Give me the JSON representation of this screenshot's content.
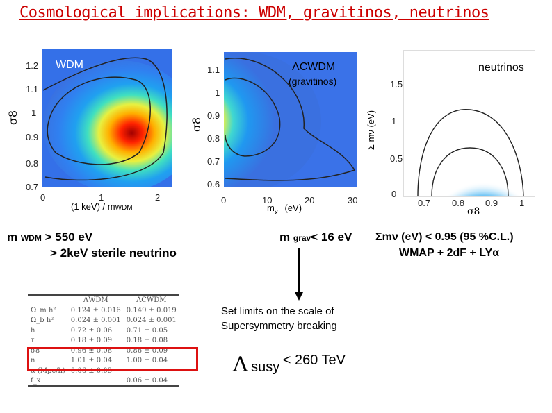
{
  "title": "Cosmological implications: WDM, gravitinos, neutrinos",
  "plots": {
    "wdm": {
      "label": "WDM",
      "y_label": "σ8",
      "x_label": "(1 keV) / m",
      "x_label_sub": "WDM",
      "y_ticks": [
        "1.2",
        "1.1",
        "1",
        "0.9",
        "0.8",
        "0.7"
      ],
      "x_ticks": [
        "0",
        "1",
        "2"
      ]
    },
    "cwdm": {
      "label": "ΛCWDM",
      "label2": "(gravitinos)",
      "y_label": "σ8",
      "x_label": "m",
      "x_label_sub": "x",
      "x_label_unit": "(eV)",
      "y_ticks": [
        "1.1",
        "1",
        "0.9",
        "0.8",
        "0.7",
        "0.6"
      ],
      "x_ticks": [
        "0",
        "10",
        "20",
        "30"
      ]
    },
    "nu": {
      "label": "neutrinos",
      "y_label": "Σ mν (eV)",
      "x_label": "σ8",
      "y_ticks": [
        "1.5",
        "1",
        "0.5",
        "0"
      ],
      "x_ticks": [
        "0.7",
        "0.8",
        "0.9",
        "1"
      ]
    }
  },
  "results": {
    "wdm_line1_pre": "m",
    "wdm_line1_sub": "WDM",
    "wdm_line1_post": " > 550 eV",
    "wdm_line2": ">  2keV  sterile neutrino",
    "grav_pre": "m",
    "grav_sub": "grav",
    "grav_post": "< 16 eV",
    "nu_line1": "Σmν (eV) < 0.95 (95 %C.L.)",
    "nu_line2": "WMAP + 2dF + LYα"
  },
  "susy": {
    "note_line1": "Set limits on the scale of",
    "note_line2": "Supersymmetry breaking",
    "lambda": "Λ",
    "word": "susy",
    "limit": "< 260 TeV"
  },
  "table": {
    "headers": [
      "",
      "ΛWDM",
      "ΛCWDM"
    ],
    "rows": [
      [
        "Ω_m h²",
        "0.124 ± 0.016",
        "0.149 ± 0.019"
      ],
      [
        "Ω_b h²",
        "0.024 ± 0.001",
        "0.024 ± 0.001"
      ],
      [
        "h",
        "0.72 ± 0.06",
        "0.71 ± 0.05"
      ],
      [
        "τ",
        "0.18 ± 0.09",
        "0.18 ± 0.08"
      ],
      [
        "σ8",
        "0.96 ± 0.08",
        "0.86 ± 0.09"
      ],
      [
        "n",
        "1.01 ± 0.04",
        "1.00 ± 0.04"
      ],
      [
        "α (Mpc/h)",
        "0.06 ± 0.03",
        "—"
      ],
      [
        "f_x",
        "",
        "0.06 ± 0.04"
      ]
    ]
  },
  "colors": {
    "title": "#cc0000",
    "highlight_box": "#dd1111",
    "arrow": "#000000"
  }
}
